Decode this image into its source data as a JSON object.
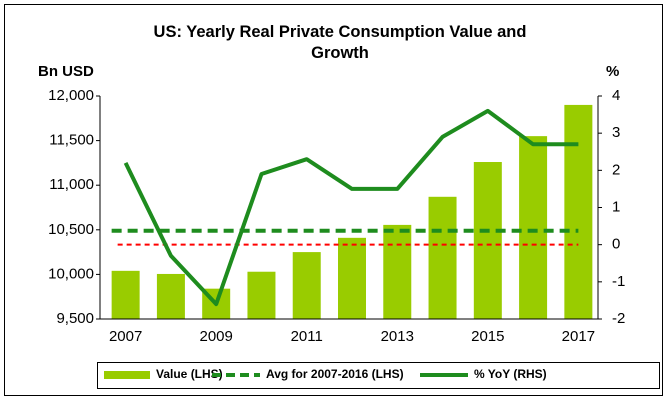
{
  "chart_data": {
    "type": "bar",
    "title": "US: Yearly Real Private Consumption Value and Growth",
    "y_label": "Bn USD",
    "y2_label": "%",
    "categories": [
      "2007",
      null,
      "2009",
      null,
      "2011",
      null,
      "2013",
      null,
      "2015",
      null,
      "2017"
    ],
    "series": [
      {
        "name": "Value (LHS)",
        "type": "bar",
        "color": "#99cc00",
        "values": [
          10040,
          10005,
          9840,
          10030,
          10250,
          10410,
          10555,
          10870,
          11260,
          11550,
          11900
        ]
      },
      {
        "name": "% YoY (RHS)",
        "type": "line",
        "axis": "y2",
        "color": "#1e8c1e",
        "values": [
          2.2,
          -0.3,
          -1.6,
          1.9,
          2.3,
          1.5,
          1.5,
          2.9,
          3.6,
          2.7,
          2.7
        ]
      }
    ],
    "average": {
      "name": "Avg for 2007-2016 (LHS)",
      "value": 10490,
      "color": "#1e8c1e"
    },
    "reference_line": {
      "axis": "y2",
      "value": 0,
      "color": "#ff0000"
    },
    "ylim": [
      9500,
      12000
    ],
    "yticks": [
      {
        "value": 9500,
        "label": "9,500"
      },
      {
        "value": 10000,
        "label": "10,000"
      },
      {
        "value": 10500,
        "label": "10,500"
      },
      {
        "value": 11000,
        "label": "11,000"
      },
      {
        "value": 11500,
        "label": "11,500"
      },
      {
        "value": 12000,
        "label": "12,000"
      }
    ],
    "y2lim": [
      -2,
      4
    ],
    "y2ticks": [
      -2,
      -1,
      0,
      1,
      2,
      3,
      4
    ],
    "legend": "bottom"
  }
}
